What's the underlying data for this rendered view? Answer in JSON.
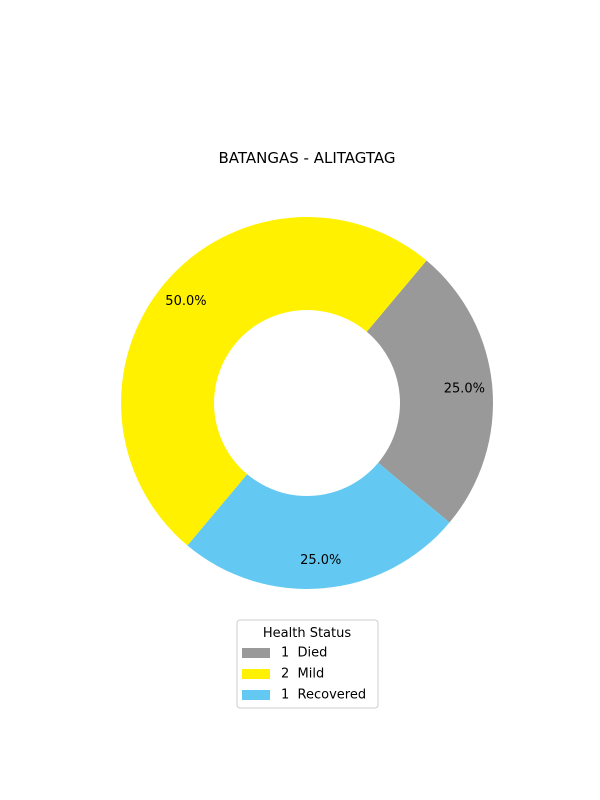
{
  "chart_data": {
    "type": "pie",
    "style": "donut",
    "title": "BATANGAS - ALITAGTAG",
    "slices": [
      {
        "label": "Died",
        "count": 1,
        "percent": 25.0,
        "percent_label": "25.0%",
        "color": "#999999"
      },
      {
        "label": "Mild",
        "count": 2,
        "percent": 50.0,
        "percent_label": "50.0%",
        "color": "#fff100"
      },
      {
        "label": "Recovered",
        "count": 1,
        "percent": 25.0,
        "percent_label": "25.0%",
        "color": "#63c9f2"
      }
    ],
    "start_angle_deg": -40,
    "direction": "counterclockwise",
    "legend": {
      "title": "Health Status",
      "placement": "bottom-center",
      "entries": [
        "1  Died",
        "2  Mild",
        "1  Recovered"
      ]
    }
  }
}
